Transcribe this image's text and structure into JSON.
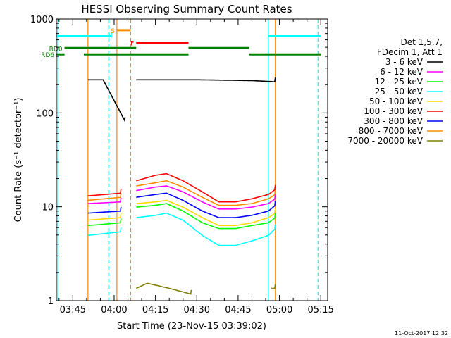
{
  "chart_data": {
    "type": "line",
    "title": "HESSI Observing Summary Count Rates",
    "xlabel": "Start Time (23-Nov-15 03:39:02)",
    "ylabel": "Count Rate (s⁻¹ detector⁻¹)",
    "yscale": "log",
    "ylim": [
      1,
      1000
    ],
    "xlim": [
      "03:39:02",
      "05:17:30"
    ],
    "x_tick_labels": [
      "03:45",
      "04:00",
      "04:15",
      "04:30",
      "04:45",
      "05:00",
      "05:15"
    ],
    "y_tick_labels": [
      "1",
      "10",
      "100",
      "1000"
    ],
    "footer": "11-Oct-2017 12:32",
    "legend": {
      "placement": "right",
      "header": [
        "Det 1,5,7,",
        "FDecim 1, Att 1"
      ],
      "entries": [
        {
          "label": "3 - 6 keV",
          "color": "#000000"
        },
        {
          "label": "6 - 12 keV",
          "color": "#ff00ff"
        },
        {
          "label": "12 - 25 keV",
          "color": "#00ff00"
        },
        {
          "label": "25 - 50 keV",
          "color": "#00ffff"
        },
        {
          "label": "50 - 100 keV",
          "color": "#ffd700"
        },
        {
          "label": "100 - 300 keV",
          "color": "#ff0000"
        },
        {
          "label": "300 - 800 keV",
          "color": "#0000ff"
        },
        {
          "label": "800 - 7000 keV",
          "color": "#ff8c00"
        },
        {
          "label": "7000 - 20000 keV",
          "color": "#808000"
        }
      ]
    },
    "series": [
      {
        "name": "3 - 6 keV",
        "color": "#000000",
        "segments": [
          {
            "x": [
              "03:50:30",
              "03:56:00",
              "04:04:00"
            ],
            "y": [
              250,
              250,
              90
            ]
          },
          {
            "x": [
              "04:08:00",
              "04:30:00",
              "04:50:00",
              "04:58:30"
            ],
            "y": [
              250,
              250,
              245,
              238
            ]
          }
        ]
      },
      {
        "name": "100 - 300 keV",
        "color": "#ff0000",
        "segments": [
          {
            "x": [
              "03:50:30",
              "04:02:30"
            ],
            "y": [
              14.5,
              15.5
            ]
          },
          {
            "x": [
              "04:08:00",
              "04:15:00",
              "04:19:00",
              "04:25:00",
              "04:32:00",
              "04:38:00",
              "04:44:00",
              "04:50:00",
              "04:56:00",
              "04:58:30"
            ],
            "y": [
              21,
              24,
              25,
              21,
              16,
              12.5,
              12.5,
              13.5,
              15,
              17
            ]
          }
        ]
      },
      {
        "name": "800 - 7000 keV",
        "color": "#ff8c00",
        "segments": [
          {
            "x": [
              "03:50:30",
              "04:02:30"
            ],
            "y": [
              13,
              14
            ]
          },
          {
            "x": [
              "04:08:00",
              "04:15:00",
              "04:19:00",
              "04:25:00",
              "04:32:00",
              "04:38:00",
              "04:44:00",
              "04:50:00",
              "04:56:00",
              "04:58:30"
            ],
            "y": [
              18.5,
              20,
              21,
              18,
              14,
              11.5,
              11.5,
              12,
              13.5,
              15
            ]
          }
        ]
      },
      {
        "name": "6 - 12 keV",
        "color": "#ff00ff",
        "segments": [
          {
            "x": [
              "03:50:30",
              "04:02:30"
            ],
            "y": [
              12,
              12.5
            ]
          },
          {
            "x": [
              "04:08:00",
              "04:15:00",
              "04:19:00",
              "04:25:00",
              "04:32:00",
              "04:38:00",
              "04:44:00",
              "04:50:00",
              "04:56:00",
              "04:58:30"
            ],
            "y": [
              16.5,
              18,
              18.5,
              16,
              12.5,
              10.5,
              10.5,
              11,
              12,
              13.5
            ]
          }
        ]
      },
      {
        "name": "300 - 800 keV",
        "color": "#0000ff",
        "segments": [
          {
            "x": [
              "03:50:30",
              "04:02:30"
            ],
            "y": [
              9.5,
              10
            ]
          },
          {
            "x": [
              "04:08:00",
              "04:15:00",
              "04:19:00",
              "04:25:00",
              "04:32:00",
              "04:38:00",
              "04:44:00",
              "04:50:00",
              "04:56:00",
              "04:58:30"
            ],
            "y": [
              14,
              15,
              15.5,
              13,
              10,
              8.5,
              8.5,
              9,
              10,
              11.5
            ]
          }
        ]
      },
      {
        "name": "50 - 100 keV",
        "color": "#ffd700",
        "segments": [
          {
            "x": [
              "03:50:30",
              "04:02:30"
            ],
            "y": [
              8,
              8.5
            ]
          },
          {
            "x": [
              "04:08:00",
              "04:15:00",
              "04:19:00",
              "04:25:00",
              "04:32:00",
              "04:38:00",
              "04:44:00",
              "04:50:00",
              "04:56:00",
              "04:58:30"
            ],
            "y": [
              12,
              12.5,
              13,
              11,
              8.5,
              7,
              7,
              7.5,
              8.5,
              9.5
            ]
          }
        ]
      },
      {
        "name": "12 - 25 keV",
        "color": "#00ff00",
        "segments": [
          {
            "x": [
              "03:50:30",
              "04:02:30"
            ],
            "y": [
              7,
              7.5
            ]
          },
          {
            "x": [
              "04:08:00",
              "04:15:00",
              "04:19:00",
              "04:25:00",
              "04:32:00",
              "04:38:00",
              "04:44:00",
              "04:50:00",
              "04:56:00",
              "04:58:30"
            ],
            "y": [
              11,
              11.5,
              12,
              10,
              7.5,
              6.5,
              6.5,
              7,
              7.5,
              8.5
            ]
          }
        ]
      },
      {
        "name": "25 - 50 keV",
        "color": "#00ffff",
        "segments": [
          {
            "x": [
              "03:50:30",
              "04:02:30"
            ],
            "y": [
              5.5,
              6
            ]
          },
          {
            "x": [
              "04:08:00",
              "04:15:00",
              "04:19:00",
              "04:25:00",
              "04:32:00",
              "04:38:00",
              "04:44:00",
              "04:50:00",
              "04:56:00",
              "04:58:30"
            ],
            "y": [
              8.5,
              9,
              9.5,
              8,
              5.5,
              4.3,
              4.3,
              4.8,
              5.5,
              6.5
            ]
          }
        ]
      },
      {
        "name": "7000 - 20000 keV",
        "color": "#808000",
        "segments": [
          {
            "x": [
              "04:08:00",
              "04:12:00",
              "04:16:00",
              "04:20:00",
              "04:24:00",
              "04:28:00"
            ],
            "y": [
              1.5,
              1.7,
              1.6,
              1.5,
              1.4,
              1.3
            ]
          },
          {
            "x": [
              "04:57:00",
              "04:58:30"
            ],
            "y": [
              1.5,
              1.5
            ]
          }
        ]
      }
    ],
    "flag_bars": [
      {
        "label": "",
        "color": "#00ffff",
        "segments": [
          [
            "03:39:02",
            "03:59:00"
          ],
          [
            "04:56:00",
            "05:15:00"
          ]
        ],
        "level": 660
      },
      {
        "label": "S",
        "color": "#ff8c00",
        "segments": [
          [
            "04:01:00",
            "04:06:00"
          ]
        ],
        "level": 760
      },
      {
        "label": "N",
        "color": "#00ffff",
        "segments": [],
        "level": 680
      },
      {
        "label": "F",
        "color": "#ff0000",
        "segments": [
          [
            "04:08:00",
            "04:27:00"
          ]
        ],
        "level": 560
      },
      {
        "label": "RD0",
        "color": "#008000",
        "segments": [
          [
            "03:42:00",
            "04:08:00"
          ],
          [
            "04:27:00",
            "04:49:00"
          ]
        ],
        "level": 490
      },
      {
        "label": "RD6",
        "color": "#008000",
        "segments": [
          [
            "03:39:02",
            "03:42:00"
          ],
          [
            "03:49:00",
            "04:27:00"
          ],
          [
            "04:49:00",
            "05:15:00"
          ]
        ],
        "level": 420
      }
    ],
    "vlines": [
      {
        "x": "03:39:30",
        "color": "#00ffff",
        "style": "solid"
      },
      {
        "x": "03:58:00",
        "color": "#00ffff",
        "style": "dashed"
      },
      {
        "x": "03:50:30",
        "color": "#ff8c00",
        "style": "solid"
      },
      {
        "x": "04:01:00",
        "color": "#ff8c00",
        "style": "solid"
      },
      {
        "x": "04:06:00",
        "color": "#ff8c00",
        "style": "dashed"
      },
      {
        "x": "04:56:00",
        "color": "#00ffff",
        "style": "solid"
      },
      {
        "x": "04:58:30",
        "color": "#ff8c00",
        "style": "solid"
      },
      {
        "x": "05:14:00",
        "color": "#00ffff",
        "style": "dashed"
      }
    ]
  }
}
